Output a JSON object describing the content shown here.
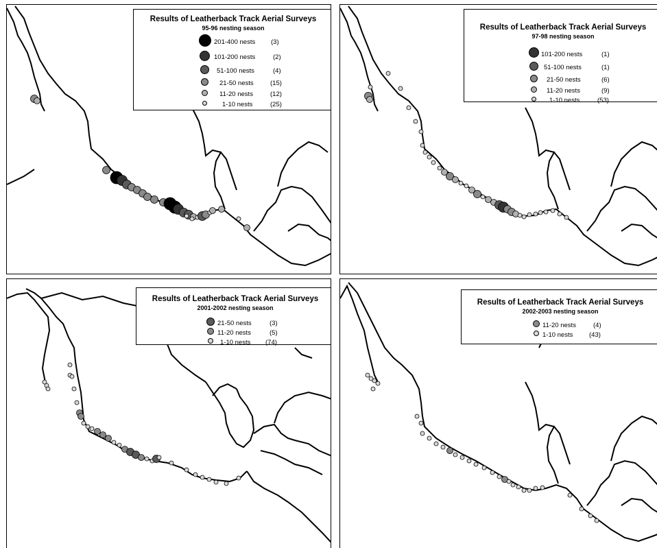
{
  "panels": [
    {
      "title": "Results of Leatherback Track Aerial Surveys",
      "season": "95-96 nesting season",
      "legend": [
        {
          "label": "201-400 nests",
          "count": "(3)",
          "color": "#000000"
        },
        {
          "label": "101-200 nests",
          "count": "(2)",
          "color": "#333333"
        },
        {
          "label": "51-100 nests",
          "count": "(4)",
          "color": "#5a5a5a"
        },
        {
          "label": "21-50 nests",
          "count": "(15)",
          "color": "#8a8a8a"
        },
        {
          "label": "11-20 nests",
          "count": "(12)",
          "color": "#b0b0b0"
        },
        {
          "label": "1-10 nests",
          "count": "(25)",
          "color": "#d8d8d8"
        }
      ]
    },
    {
      "title": "Results of Leatherback Track Aerial Surveys",
      "season": "97-98 nesting season",
      "legend": [
        {
          "label": "101-200 nests",
          "count": "(1)",
          "color": "#333333"
        },
        {
          "label": "51-100 nests",
          "count": "(1)",
          "color": "#5a5a5a"
        },
        {
          "label": "21-50 nests",
          "count": "(6)",
          "color": "#8a8a8a"
        },
        {
          "label": "11-20 nests",
          "count": "(9)",
          "color": "#b0b0b0"
        },
        {
          "label": "1-10 nests",
          "count": "(53)",
          "color": "#d8d8d8"
        }
      ]
    },
    {
      "title": "Results of Leatherback Track Aerial Surveys",
      "season": "2001-2002 nesting season",
      "legend": [
        {
          "label": "21-50 nests",
          "count": "(3)",
          "color": "#5a5a5a"
        },
        {
          "label": "11-20 nests",
          "count": "(5)",
          "color": "#8a8a8a"
        },
        {
          "label": "1-10 nests",
          "count": "(74)",
          "color": "#d8d8d8"
        }
      ]
    },
    {
      "title": "Results of Leatherback Track Aerial Surveys",
      "season": "2002-2003 nesting season",
      "legend": [
        {
          "label": "11-20 nests",
          "count": "(4)",
          "color": "#8a8a8a"
        },
        {
          "label": "1-10 nests",
          "count": "(43)",
          "color": "#d8d8d8"
        }
      ]
    }
  ]
}
